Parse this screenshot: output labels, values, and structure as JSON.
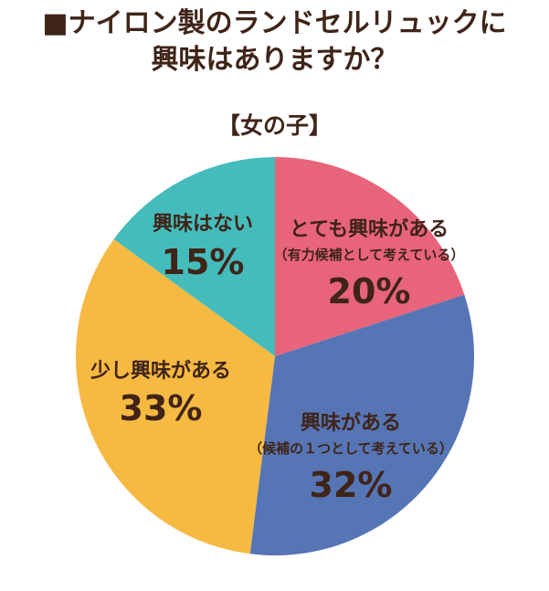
{
  "title_line1": "■ナイロン製のランドセルリュックに",
  "title_line2": "興味はありますか？",
  "colors": {
    "text": "#3f2418",
    "background": "#ffffff"
  },
  "chart_data": {
    "type": "pie",
    "subtitle": "【女の子】",
    "start": "12 o'clock",
    "direction": "clockwise",
    "slices": [
      {
        "label": "とても興味がある",
        "sublabel": "（有力候補として考えている）",
        "value": 20,
        "value_label": "20%",
        "color": "#e8647a"
      },
      {
        "label": "興味がある",
        "sublabel": "（候補の１つとして考えている）",
        "value": 32,
        "value_label": "32%",
        "color": "#5675b5"
      },
      {
        "label": "少し興味がある",
        "sublabel": "",
        "value": 33,
        "value_label": "33%",
        "color": "#f6b942"
      },
      {
        "label": "興味はない",
        "sublabel": "",
        "value": 15,
        "value_label": "15%",
        "color": "#45bcbc"
      }
    ]
  }
}
